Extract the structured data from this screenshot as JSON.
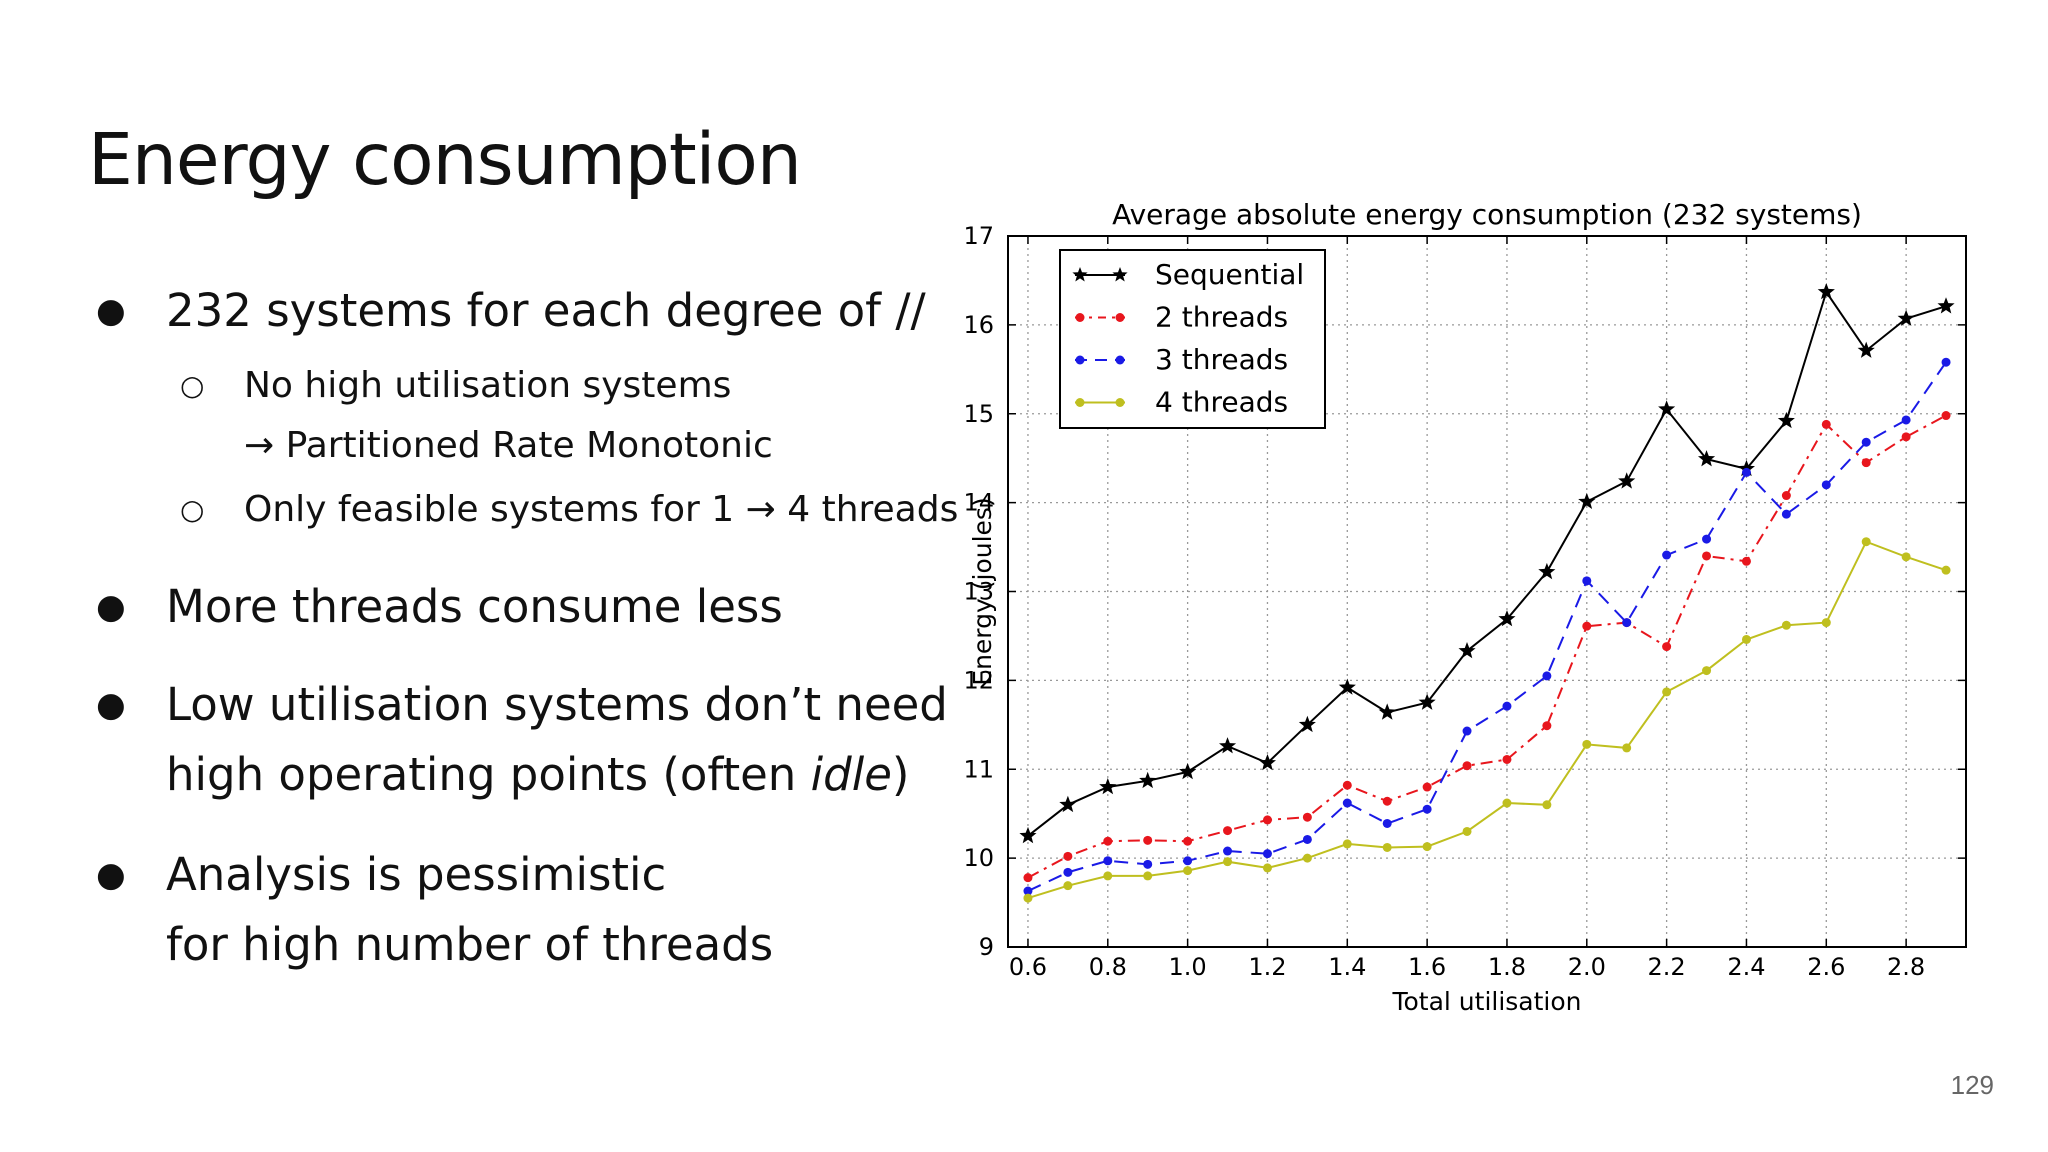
{
  "slide": {
    "title": "Energy consumption",
    "page_number": "129",
    "bullets": [
      {
        "text": "232 systems for each degree of //"
      },
      {
        "text": "More threads consume less"
      },
      {
        "text_line1": "Low utilisation systems don’t need",
        "text_line2_pre": "high operating points (often ",
        "text_line2_em": "idle",
        "text_line2_post": ")"
      },
      {
        "text_line1": "Analysis is pessimistic",
        "text_line2": "for high number of threads"
      }
    ],
    "subbullets": [
      {
        "text_line1": "No high utilisation systems",
        "text_line2": "→ Partitioned Rate Monotonic"
      },
      {
        "text": "Only feasible systems for 1 → 4 threads"
      }
    ]
  },
  "chart_data": {
    "type": "line",
    "title": "Average absolute energy consumption (232 systems)",
    "xlabel": "Total utilisation",
    "ylabel": "Energy (joules)",
    "xlim": [
      0.55,
      2.95
    ],
    "ylim": [
      9,
      17
    ],
    "xticks": [
      "0.6",
      "0.8",
      "1.0",
      "1.2",
      "1.4",
      "1.6",
      "1.8",
      "2.0",
      "2.2",
      "2.4",
      "2.6",
      "2.8"
    ],
    "yticks": [
      "9",
      "10",
      "11",
      "12",
      "13",
      "14",
      "15",
      "16",
      "17"
    ],
    "grid": true,
    "legend_position": "top-left",
    "x": [
      0.6,
      0.7,
      0.8,
      0.9,
      1.0,
      1.1,
      1.2,
      1.3,
      1.4,
      1.5,
      1.6,
      1.7,
      1.8,
      1.9,
      2.0,
      2.1,
      2.2,
      2.3,
      2.4,
      2.5,
      2.6,
      2.7,
      2.8,
      2.9
    ],
    "series": [
      {
        "name": "Sequential",
        "color": "#000000",
        "marker": "star",
        "linestyle": "solid",
        "values": [
          10.25,
          10.6,
          10.8,
          10.87,
          10.97,
          11.26,
          11.07,
          11.5,
          11.92,
          11.64,
          11.75,
          12.33,
          12.69,
          13.22,
          14.01,
          14.24,
          15.05,
          14.49,
          14.38,
          14.92,
          16.37,
          15.71,
          16.07,
          16.21
        ]
      },
      {
        "name": "2 threads",
        "color": "#e8161d",
        "marker": "dot",
        "linestyle": "dashdot",
        "values": [
          9.78,
          10.02,
          10.19,
          10.2,
          10.19,
          10.31,
          10.43,
          10.46,
          10.82,
          10.64,
          10.8,
          11.04,
          11.11,
          11.49,
          12.61,
          12.65,
          12.38,
          13.4,
          13.34,
          14.08,
          14.88,
          14.45,
          14.74,
          14.98
        ]
      },
      {
        "name": "3 threads",
        "color": "#1a1ae6",
        "marker": "dot",
        "linestyle": "dashed",
        "values": [
          9.63,
          9.84,
          9.97,
          9.93,
          9.97,
          10.08,
          10.05,
          10.21,
          10.62,
          10.39,
          10.55,
          11.43,
          11.71,
          12.05,
          13.12,
          12.65,
          13.41,
          13.59,
          14.34,
          13.87,
          14.2,
          14.68,
          14.93,
          15.58
        ]
      },
      {
        "name": "4 threads",
        "color": "#bfbf1f",
        "marker": "dot",
        "linestyle": "solid",
        "values": [
          9.55,
          9.69,
          9.8,
          9.8,
          9.86,
          9.96,
          9.89,
          10.0,
          10.16,
          10.12,
          10.13,
          10.3,
          10.62,
          10.6,
          11.28,
          11.24,
          11.87,
          12.11,
          12.46,
          12.62,
          12.65,
          13.56,
          13.39,
          13.24
        ]
      }
    ]
  }
}
